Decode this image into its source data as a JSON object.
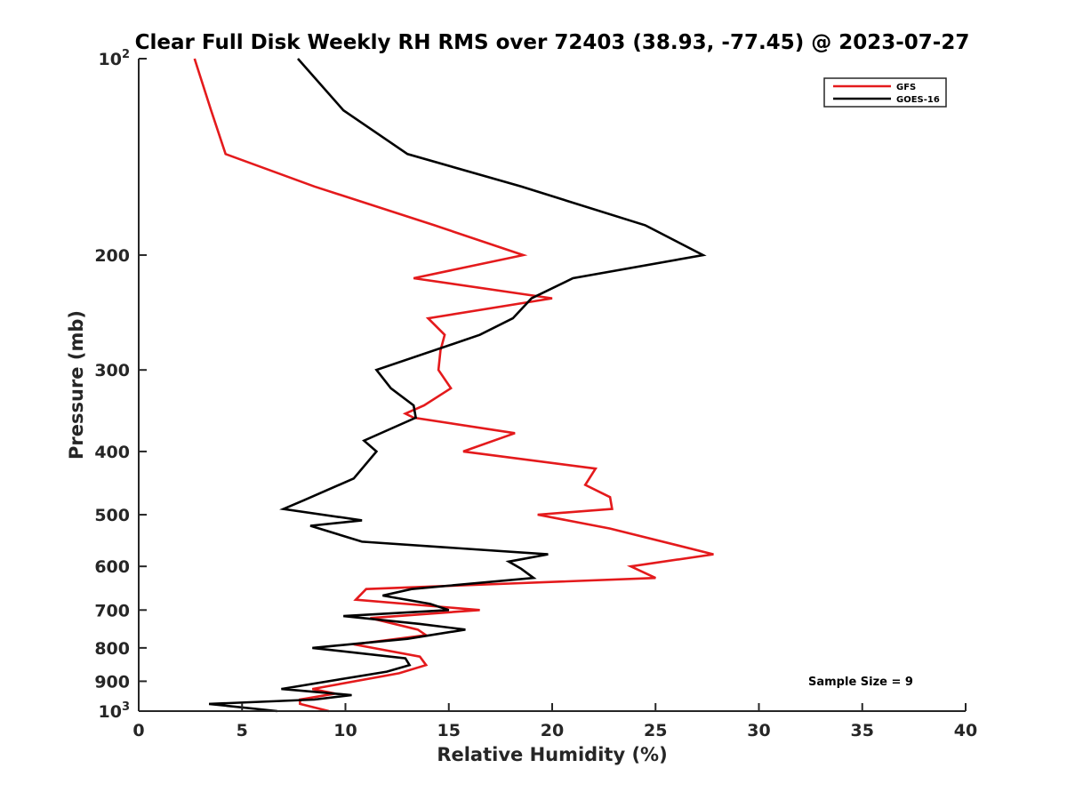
{
  "chart_data": {
    "type": "line",
    "title": "Clear Full Disk Weekly RH RMS over 72403 (38.93, -77.45) @ 2023-07-27",
    "xlabel": "Relative Humidity (%)",
    "ylabel": "Pressure (mb)",
    "xlim": [
      0,
      40
    ],
    "ylim": [
      100,
      1000
    ],
    "y_scale": "log",
    "y_reversed": true,
    "grid": false,
    "legend_position": "top-right",
    "x_ticks": [
      "0",
      "5",
      "10",
      "15",
      "20",
      "25",
      "30",
      "35",
      "40"
    ],
    "x_tick_values": [
      0,
      5,
      10,
      15,
      20,
      25,
      30,
      35,
      40
    ],
    "y_ticks": [
      {
        "value": 100,
        "base": "10",
        "exp": "2"
      },
      {
        "value": 200,
        "label": "200"
      },
      {
        "value": 300,
        "label": "300"
      },
      {
        "value": 400,
        "label": "400"
      },
      {
        "value": 500,
        "label": "500"
      },
      {
        "value": 600,
        "label": "600"
      },
      {
        "value": 700,
        "label": "700"
      },
      {
        "value": 800,
        "label": "800"
      },
      {
        "value": 900,
        "label": "900"
      },
      {
        "value": 1000,
        "base": "10",
        "exp": "3"
      }
    ],
    "annotation": "Sample Size = 9",
    "series": [
      {
        "name": "GFS",
        "color": "#e41a1c",
        "points": [
          {
            "rh": 2.7,
            "p": 100
          },
          {
            "rh": 3.5,
            "p": 120
          },
          {
            "rh": 4.2,
            "p": 140
          },
          {
            "rh": 8.5,
            "p": 157
          },
          {
            "rh": 14.3,
            "p": 180
          },
          {
            "rh": 18.6,
            "p": 200
          },
          {
            "rh": 13.3,
            "p": 217
          },
          {
            "rh": 20.0,
            "p": 233
          },
          {
            "rh": 14.0,
            "p": 250
          },
          {
            "rh": 14.8,
            "p": 265
          },
          {
            "rh": 14.6,
            "p": 280
          },
          {
            "rh": 14.5,
            "p": 300
          },
          {
            "rh": 15.1,
            "p": 320
          },
          {
            "rh": 13.8,
            "p": 340
          },
          {
            "rh": 12.9,
            "p": 350
          },
          {
            "rh": 13.3,
            "p": 355
          },
          {
            "rh": 18.2,
            "p": 375
          },
          {
            "rh": 15.7,
            "p": 400
          },
          {
            "rh": 22.1,
            "p": 425
          },
          {
            "rh": 21.6,
            "p": 450
          },
          {
            "rh": 22.8,
            "p": 470
          },
          {
            "rh": 22.9,
            "p": 490
          },
          {
            "rh": 19.3,
            "p": 500
          },
          {
            "rh": 22.8,
            "p": 525
          },
          {
            "rh": 27.8,
            "p": 575
          },
          {
            "rh": 23.8,
            "p": 600
          },
          {
            "rh": 25.0,
            "p": 625
          },
          {
            "rh": 11.0,
            "p": 650
          },
          {
            "rh": 10.5,
            "p": 675
          },
          {
            "rh": 16.5,
            "p": 700
          },
          {
            "rh": 11.2,
            "p": 720
          },
          {
            "rh": 13.5,
            "p": 750
          },
          {
            "rh": 13.9,
            "p": 765
          },
          {
            "rh": 10.4,
            "p": 790
          },
          {
            "rh": 13.6,
            "p": 825
          },
          {
            "rh": 13.9,
            "p": 850
          },
          {
            "rh": 12.6,
            "p": 875
          },
          {
            "rh": 8.4,
            "p": 925
          },
          {
            "rh": 9.5,
            "p": 940
          },
          {
            "rh": 7.8,
            "p": 960
          },
          {
            "rh": 7.8,
            "p": 975
          },
          {
            "rh": 9.2,
            "p": 1000
          }
        ]
      },
      {
        "name": "GOES-16",
        "color": "#000000",
        "points": [
          {
            "rh": 7.7,
            "p": 100
          },
          {
            "rh": 9.9,
            "p": 120
          },
          {
            "rh": 13.0,
            "p": 140
          },
          {
            "rh": 18.5,
            "p": 157
          },
          {
            "rh": 24.5,
            "p": 180
          },
          {
            "rh": 27.3,
            "p": 200
          },
          {
            "rh": 21.0,
            "p": 217
          },
          {
            "rh": 19.0,
            "p": 233
          },
          {
            "rh": 18.1,
            "p": 250
          },
          {
            "rh": 16.5,
            "p": 265
          },
          {
            "rh": 11.5,
            "p": 300
          },
          {
            "rh": 12.2,
            "p": 320
          },
          {
            "rh": 13.3,
            "p": 340
          },
          {
            "rh": 13.4,
            "p": 355
          },
          {
            "rh": 10.9,
            "p": 385
          },
          {
            "rh": 11.5,
            "p": 400
          },
          {
            "rh": 10.4,
            "p": 440
          },
          {
            "rh": 8.0,
            "p": 475
          },
          {
            "rh": 7.0,
            "p": 490
          },
          {
            "rh": 10.8,
            "p": 510
          },
          {
            "rh": 8.3,
            "p": 520
          },
          {
            "rh": 10.8,
            "p": 550
          },
          {
            "rh": 19.8,
            "p": 575
          },
          {
            "rh": 17.9,
            "p": 590
          },
          {
            "rh": 18.5,
            "p": 605
          },
          {
            "rh": 19.1,
            "p": 625
          },
          {
            "rh": 13.2,
            "p": 650
          },
          {
            "rh": 11.8,
            "p": 665
          },
          {
            "rh": 14.1,
            "p": 685
          },
          {
            "rh": 15.0,
            "p": 700
          },
          {
            "rh": 9.9,
            "p": 715
          },
          {
            "rh": 13.6,
            "p": 735
          },
          {
            "rh": 15.8,
            "p": 750
          },
          {
            "rh": 13.0,
            "p": 775
          },
          {
            "rh": 8.4,
            "p": 800
          },
          {
            "rh": 12.9,
            "p": 830
          },
          {
            "rh": 13.1,
            "p": 850
          },
          {
            "rh": 12.0,
            "p": 870
          },
          {
            "rh": 6.9,
            "p": 925
          },
          {
            "rh": 10.3,
            "p": 945
          },
          {
            "rh": 8.5,
            "p": 960
          },
          {
            "rh": 3.4,
            "p": 975
          },
          {
            "rh": 6.7,
            "p": 1000
          }
        ]
      }
    ]
  }
}
